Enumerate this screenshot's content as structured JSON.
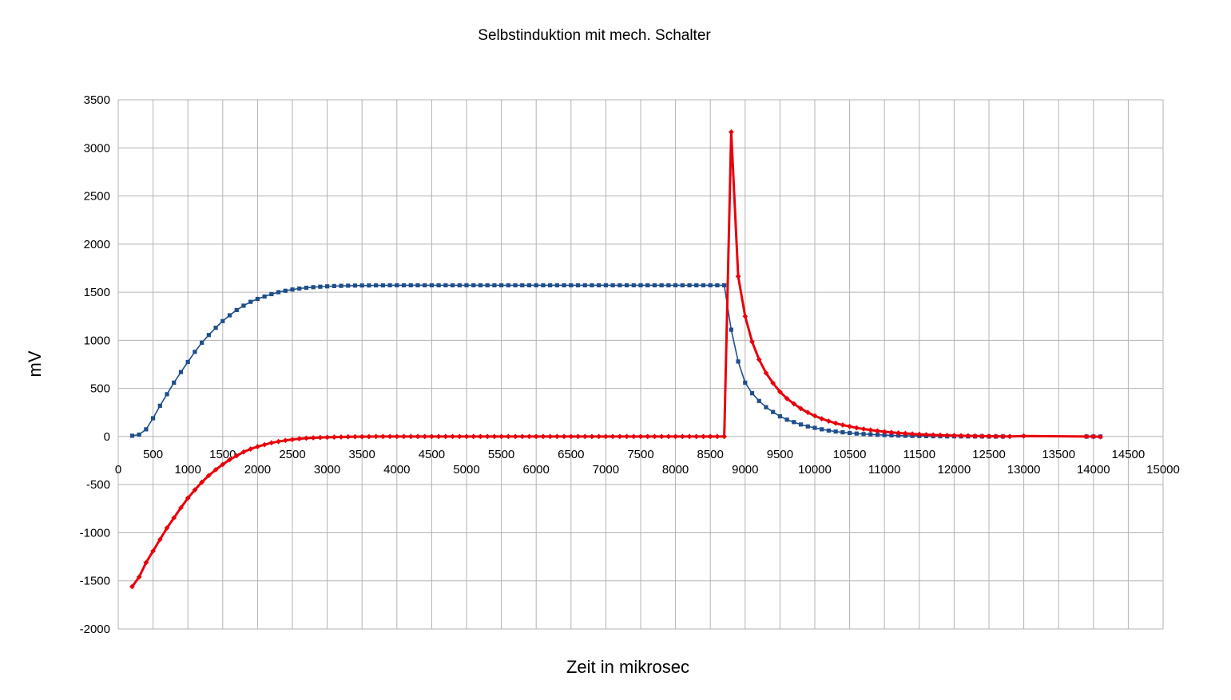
{
  "chart_data": {
    "type": "line",
    "title": "Selbstinduktion mit mech. Schalter",
    "xlabel": "Zeit in mikrosec",
    "ylabel": "mV",
    "xlim": [
      0,
      15000
    ],
    "ylim": [
      -2000,
      3500
    ],
    "x_ticks": [
      "0",
      "500",
      "1000",
      "1500",
      "2000",
      "2500",
      "3000",
      "3500",
      "4000",
      "4500",
      "5000",
      "5500",
      "6000",
      "6500",
      "7000",
      "7500",
      "8000",
      "8500",
      "9000",
      "9500",
      "10000",
      "10500",
      "11000",
      "11500",
      "12000",
      "12500",
      "13000",
      "13500",
      "14000",
      "14500",
      "15000"
    ],
    "y_ticks": [
      "3500",
      "3000",
      "2500",
      "2000",
      "1500",
      "1000",
      "500",
      "0",
      "-500",
      "-1000",
      "-1500",
      "-2000"
    ],
    "grid": true,
    "legend": "none",
    "series": [
      {
        "color": "#1f4e8c",
        "marker": "square",
        "points": [
          [
            200,
            8
          ],
          [
            300,
            20
          ],
          [
            400,
            75
          ],
          [
            500,
            190
          ],
          [
            600,
            320
          ],
          [
            700,
            440
          ],
          [
            800,
            560
          ],
          [
            900,
            670
          ],
          [
            1000,
            775
          ],
          [
            1100,
            880
          ],
          [
            1200,
            975
          ],
          [
            1300,
            1055
          ],
          [
            1400,
            1130
          ],
          [
            1500,
            1200
          ],
          [
            1600,
            1260
          ],
          [
            1700,
            1315
          ],
          [
            1800,
            1360
          ],
          [
            1900,
            1400
          ],
          [
            2000,
            1430
          ],
          [
            2100,
            1455
          ],
          [
            2200,
            1480
          ],
          [
            2300,
            1500
          ],
          [
            2400,
            1515
          ],
          [
            2500,
            1528
          ],
          [
            2600,
            1538
          ],
          [
            2700,
            1546
          ],
          [
            2800,
            1552
          ],
          [
            2900,
            1557
          ],
          [
            3000,
            1561
          ],
          [
            3100,
            1564
          ],
          [
            3200,
            1566
          ],
          [
            3300,
            1568
          ],
          [
            3400,
            1569
          ],
          [
            3500,
            1570
          ],
          [
            3600,
            1570
          ],
          [
            3700,
            1571
          ],
          [
            3800,
            1571
          ],
          [
            3900,
            1572
          ],
          [
            4000,
            1572
          ],
          [
            4100,
            1572
          ],
          [
            4200,
            1572
          ],
          [
            4300,
            1572
          ],
          [
            4400,
            1572
          ],
          [
            4500,
            1572
          ],
          [
            4600,
            1572
          ],
          [
            4700,
            1572
          ],
          [
            4800,
            1572
          ],
          [
            4900,
            1572
          ],
          [
            5000,
            1572
          ],
          [
            5100,
            1572
          ],
          [
            5200,
            1572
          ],
          [
            5300,
            1572
          ],
          [
            5400,
            1572
          ],
          [
            5500,
            1572
          ],
          [
            5600,
            1572
          ],
          [
            5700,
            1572
          ],
          [
            5800,
            1572
          ],
          [
            5900,
            1572
          ],
          [
            6000,
            1572
          ],
          [
            6100,
            1572
          ],
          [
            6200,
            1572
          ],
          [
            6300,
            1572
          ],
          [
            6400,
            1572
          ],
          [
            6500,
            1572
          ],
          [
            6600,
            1572
          ],
          [
            6700,
            1572
          ],
          [
            6800,
            1572
          ],
          [
            6900,
            1572
          ],
          [
            7000,
            1572
          ],
          [
            7100,
            1572
          ],
          [
            7200,
            1572
          ],
          [
            7300,
            1572
          ],
          [
            7400,
            1572
          ],
          [
            7500,
            1572
          ],
          [
            7600,
            1572
          ],
          [
            7700,
            1572
          ],
          [
            7800,
            1572
          ],
          [
            7900,
            1572
          ],
          [
            8000,
            1572
          ],
          [
            8100,
            1572
          ],
          [
            8200,
            1572
          ],
          [
            8300,
            1572
          ],
          [
            8400,
            1572
          ],
          [
            8500,
            1572
          ],
          [
            8600,
            1572
          ],
          [
            8700,
            1572
          ],
          [
            8800,
            1110
          ],
          [
            8900,
            780
          ],
          [
            9000,
            560
          ],
          [
            9100,
            450
          ],
          [
            9200,
            370
          ],
          [
            9300,
            305
          ],
          [
            9400,
            255
          ],
          [
            9500,
            210
          ],
          [
            9600,
            175
          ],
          [
            9700,
            150
          ],
          [
            9800,
            125
          ],
          [
            9900,
            105
          ],
          [
            10000,
            90
          ],
          [
            10100,
            75
          ],
          [
            10200,
            62
          ],
          [
            10300,
            52
          ],
          [
            10400,
            44
          ],
          [
            10500,
            37
          ],
          [
            10600,
            31
          ],
          [
            10700,
            26
          ],
          [
            10800,
            22
          ],
          [
            10900,
            18
          ],
          [
            11000,
            15
          ],
          [
            11100,
            12
          ],
          [
            11200,
            10
          ],
          [
            11300,
            8
          ],
          [
            11400,
            6
          ],
          [
            11500,
            5
          ],
          [
            11600,
            4
          ],
          [
            11700,
            3
          ],
          [
            11800,
            3
          ],
          [
            11900,
            2
          ],
          [
            12000,
            2
          ],
          [
            12100,
            1
          ],
          [
            12200,
            1
          ],
          [
            12300,
            1
          ],
          [
            12400,
            1
          ],
          [
            12500,
            0
          ],
          [
            12600,
            0
          ],
          [
            12700,
            0
          ],
          [
            13900,
            0
          ],
          [
            14000,
            0
          ],
          [
            14100,
            0
          ]
        ]
      },
      {
        "color": "#e8000b",
        "marker": "diamond",
        "points": [
          [
            200,
            -1560
          ],
          [
            300,
            -1460
          ],
          [
            400,
            -1310
          ],
          [
            500,
            -1190
          ],
          [
            600,
            -1070
          ],
          [
            700,
            -950
          ],
          [
            800,
            -845
          ],
          [
            900,
            -740
          ],
          [
            1000,
            -640
          ],
          [
            1100,
            -555
          ],
          [
            1200,
            -475
          ],
          [
            1300,
            -405
          ],
          [
            1400,
            -345
          ],
          [
            1500,
            -290
          ],
          [
            1600,
            -240
          ],
          [
            1700,
            -200
          ],
          [
            1800,
            -160
          ],
          [
            1900,
            -130
          ],
          [
            2000,
            -105
          ],
          [
            2100,
            -85
          ],
          [
            2200,
            -65
          ],
          [
            2300,
            -52
          ],
          [
            2400,
            -40
          ],
          [
            2500,
            -31
          ],
          [
            2600,
            -23
          ],
          [
            2700,
            -17
          ],
          [
            2800,
            -13
          ],
          [
            2900,
            -10
          ],
          [
            3000,
            -8
          ],
          [
            3100,
            -6
          ],
          [
            3200,
            -5
          ],
          [
            3300,
            -3
          ],
          [
            3400,
            -2
          ],
          [
            3500,
            -2
          ],
          [
            3600,
            -1
          ],
          [
            3700,
            0
          ],
          [
            3800,
            0
          ],
          [
            3900,
            0
          ],
          [
            4000,
            0
          ],
          [
            4100,
            0
          ],
          [
            4200,
            0
          ],
          [
            4300,
            0
          ],
          [
            4400,
            0
          ],
          [
            4500,
            0
          ],
          [
            4600,
            0
          ],
          [
            4700,
            0
          ],
          [
            4800,
            0
          ],
          [
            4900,
            0
          ],
          [
            5000,
            0
          ],
          [
            5100,
            0
          ],
          [
            5200,
            0
          ],
          [
            5300,
            0
          ],
          [
            5400,
            0
          ],
          [
            5500,
            0
          ],
          [
            5600,
            0
          ],
          [
            5700,
            0
          ],
          [
            5800,
            0
          ],
          [
            5900,
            0
          ],
          [
            6000,
            0
          ],
          [
            6100,
            0
          ],
          [
            6200,
            0
          ],
          [
            6300,
            0
          ],
          [
            6400,
            0
          ],
          [
            6500,
            0
          ],
          [
            6600,
            0
          ],
          [
            6700,
            0
          ],
          [
            6800,
            0
          ],
          [
            6900,
            0
          ],
          [
            7000,
            0
          ],
          [
            7100,
            0
          ],
          [
            7200,
            0
          ],
          [
            7300,
            0
          ],
          [
            7400,
            0
          ],
          [
            7500,
            0
          ],
          [
            7600,
            0
          ],
          [
            7700,
            0
          ],
          [
            7800,
            0
          ],
          [
            7900,
            0
          ],
          [
            8000,
            0
          ],
          [
            8100,
            0
          ],
          [
            8200,
            0
          ],
          [
            8300,
            0
          ],
          [
            8400,
            0
          ],
          [
            8500,
            0
          ],
          [
            8600,
            0
          ],
          [
            8700,
            0
          ],
          [
            8800,
            3165
          ],
          [
            8900,
            1665
          ],
          [
            9000,
            1250
          ],
          [
            9100,
            985
          ],
          [
            9200,
            800
          ],
          [
            9300,
            660
          ],
          [
            9400,
            555
          ],
          [
            9500,
            465
          ],
          [
            9600,
            395
          ],
          [
            9700,
            340
          ],
          [
            9800,
            290
          ],
          [
            9900,
            250
          ],
          [
            10000,
            215
          ],
          [
            10100,
            185
          ],
          [
            10200,
            160
          ],
          [
            10300,
            138
          ],
          [
            10400,
            120
          ],
          [
            10500,
            105
          ],
          [
            10600,
            90
          ],
          [
            10700,
            78
          ],
          [
            10800,
            68
          ],
          [
            10900,
            58
          ],
          [
            11000,
            50
          ],
          [
            11100,
            43
          ],
          [
            11200,
            37
          ],
          [
            11300,
            32
          ],
          [
            11400,
            27
          ],
          [
            11500,
            23
          ],
          [
            11600,
            19
          ],
          [
            11700,
            16
          ],
          [
            11800,
            14
          ],
          [
            11900,
            12
          ],
          [
            12000,
            10
          ],
          [
            12100,
            8
          ],
          [
            12200,
            7
          ],
          [
            12300,
            5
          ],
          [
            12400,
            4
          ],
          [
            12500,
            3
          ],
          [
            12600,
            2
          ],
          [
            12700,
            1
          ],
          [
            12800,
            1
          ],
          [
            13000,
            5
          ],
          [
            13900,
            0
          ],
          [
            14000,
            0
          ],
          [
            14100,
            -3
          ]
        ]
      }
    ]
  }
}
